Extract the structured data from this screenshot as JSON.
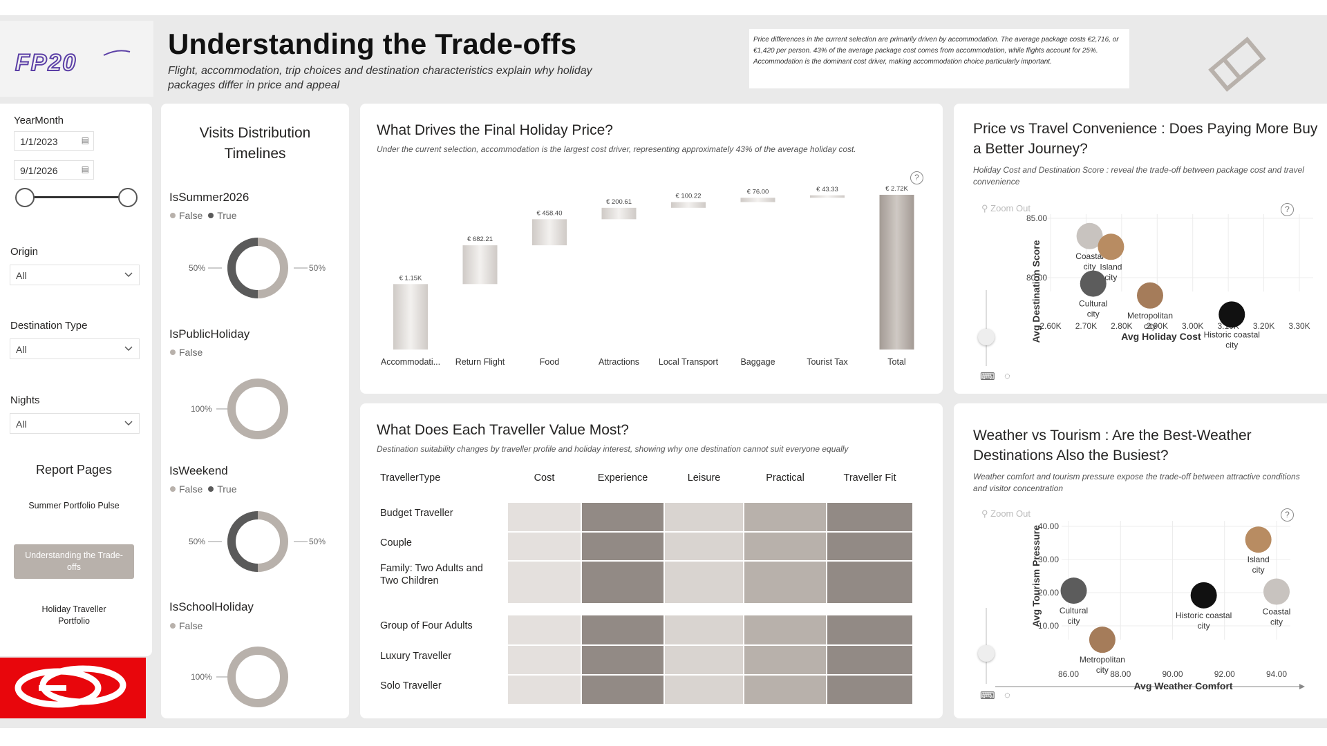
{
  "header": {
    "title": "Understanding the Trade-offs",
    "subtitle": "Flight, accommodation, trip choices and destination characteristics explain why holiday packages differ in price and appeal",
    "note": "Price differences in the current selection are primarily driven by accommodation. The average package costs €2,716, or €1,420 per person. 43% of the average package cost comes from accommodation, while flights account for 25%. Accommodation is the dominant cost driver, making accommodation choice particularly important.",
    "logo_text": "FP20"
  },
  "filters": {
    "yearmonth_label": "YearMonth",
    "start_date": "1/1/2023",
    "end_date": "9/1/2026",
    "slider_start": 0,
    "slider_end": 1,
    "origin_label": "Origin",
    "origin_value": "All",
    "destination_label": "Destination Type",
    "destination_value": "All",
    "nights_label": "Nights",
    "nights_value": "All"
  },
  "nav": {
    "heading": "Report Pages",
    "items": [
      {
        "label": "Summer Portfolio Pulse",
        "active": false
      },
      {
        "label": "Understanding the Trade-offs",
        "active": true
      },
      {
        "label": "Holiday Traveller Portfolio",
        "active": false
      }
    ]
  },
  "visits": {
    "title": "Visits Distribution Timelines",
    "blocks": [
      {
        "name": "IsSummer2026",
        "legend": [
          {
            "label": "False",
            "color": "#b8b1ab"
          },
          {
            "label": "True",
            "color": "#5a5a5a"
          }
        ],
        "values": [
          50,
          50
        ],
        "labels": [
          "50%",
          "50%"
        ]
      },
      {
        "name": "IsPublicHoliday",
        "legend": [
          {
            "label": "False",
            "color": "#b8b1ab"
          }
        ],
        "values": [
          100
        ],
        "labels": [
          "100%"
        ]
      },
      {
        "name": "IsWeekend",
        "legend": [
          {
            "label": "False",
            "color": "#b8b1ab"
          },
          {
            "label": "True",
            "color": "#5a5a5a"
          }
        ],
        "values": [
          50,
          50
        ],
        "labels": [
          "50%",
          "50%"
        ]
      },
      {
        "name": "IsSchoolHoliday",
        "legend": [
          {
            "label": "False",
            "color": "#b8b1ab"
          }
        ],
        "values": [
          100
        ],
        "labels": [
          "100%"
        ]
      }
    ]
  },
  "waterfall": {
    "title": "What Drives the Final Holiday Price?",
    "subtitle": "Under the current selection, accommodation is the largest cost driver, representing approximately 43% of the average holiday cost.",
    "chart_data": {
      "type": "bar",
      "categories": [
        "Accommodati...",
        "Return Flight",
        "Food",
        "Attractions",
        "Local Transport",
        "Baggage",
        "Tourist Tax",
        "Total"
      ],
      "values": [
        1150,
        682.21,
        458.4,
        200.61,
        100.22,
        76.0,
        43.33,
        2720
      ],
      "data_labels": [
        "€ 1.15K",
        "€ 682.21",
        "€ 458.40",
        "€ 200.61",
        "€ 100.22",
        "€ 76.00",
        "€ 43.33",
        "€ 2.72K"
      ],
      "is_total": [
        false,
        false,
        false,
        false,
        false,
        false,
        false,
        true
      ]
    }
  },
  "traveller": {
    "title": "What Does Each Traveller Value Most?",
    "subtitle": "Destination suitability changes by traveller profile and holiday interest, showing why one destination cannot suit everyone equally",
    "row_header": "TravellerType",
    "columns": [
      "Cost",
      "Experience",
      "Leisure",
      "Practical",
      "Traveller Fit"
    ],
    "rows": [
      "Budget Traveller",
      "Couple",
      "Family: Two Adults and Two Children",
      "Group of Four Adults",
      "Luxury Traveller",
      "Solo Traveller"
    ],
    "column_colors": [
      "#e4e0dd",
      "#928a85",
      "#d9d4d0",
      "#b8b1ab",
      "#928a85"
    ]
  },
  "scatter1": {
    "title": "Price vs Travel Convenience : Does Paying More Buy a Better Journey?",
    "subtitle": "Holiday Cost and Destination Score : reveal the trade-off between package cost and travel convenience",
    "zoom_label": "Zoom Out",
    "chart_data": {
      "type": "scatter",
      "xlabel": "Avg Holiday Cost",
      "ylabel": "Avg Destination Score",
      "x_ticks": [
        "2.60K",
        "2.70K",
        "2.80K",
        "2.90K",
        "3.00K",
        "3.10K",
        "3.20K",
        "3.30K"
      ],
      "y_ticks": [
        "85.00",
        "80.00"
      ],
      "points": [
        {
          "label": "Coastal city",
          "x": 2710,
          "y": 83.5,
          "color": "#c8c3bf"
        },
        {
          "label": "Island city",
          "x": 2770,
          "y": 82.6,
          "color": "#b88c62"
        },
        {
          "label": "Cultural city",
          "x": 2720,
          "y": 79.5,
          "color": "#5c5c5c"
        },
        {
          "label": "Metropolitan city",
          "x": 2880,
          "y": 78.5,
          "color": "#a57c5a"
        },
        {
          "label": "Historic coastal city",
          "x": 3110,
          "y": 76.9,
          "color": "#111111"
        }
      ]
    }
  },
  "scatter2": {
    "title": "Weather vs Tourism : Are the Best-Weather Destinations Also the Busiest?",
    "subtitle": "Weather comfort and tourism pressure expose the trade-off between attractive conditions and visitor concentration",
    "zoom_label": "Zoom Out",
    "chart_data": {
      "type": "scatter",
      "xlabel": "Avg Weather Comfort",
      "ylabel": "Avg Tourism Pressure",
      "x_ticks": [
        "86.00",
        "88.00",
        "90.00",
        "92.00",
        "94.00"
      ],
      "y_ticks": [
        "40.00",
        "30.00",
        "20.00",
        "10.00"
      ],
      "points": [
        {
          "label": "Island city",
          "x": 93.3,
          "y": 36.0,
          "color": "#b88c62"
        },
        {
          "label": "Cultural city",
          "x": 86.2,
          "y": 20.6,
          "color": "#5c5c5c"
        },
        {
          "label": "Historic coastal city",
          "x": 91.2,
          "y": 19.2,
          "color": "#111111"
        },
        {
          "label": "Coastal city",
          "x": 94.0,
          "y": 20.3,
          "color": "#c8c3bf"
        },
        {
          "label": "Metropolitan city",
          "x": 87.3,
          "y": 5.8,
          "color": "#a57c5a"
        }
      ]
    }
  }
}
